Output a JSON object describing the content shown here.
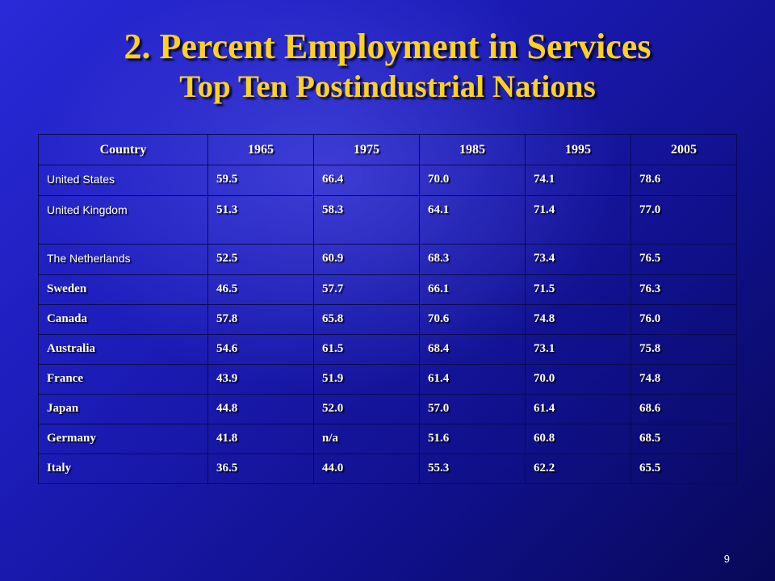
{
  "title": {
    "line1": "2. Percent Employment in Services",
    "line2": "Top Ten Postindustrial Nations"
  },
  "table": {
    "headers": [
      "Country",
      "1965",
      "1975",
      "1985",
      "1995",
      "2005"
    ],
    "rows": [
      {
        "country": "United States",
        "values": [
          "59.5",
          "66.4",
          "70.0",
          "74.1",
          "78.6"
        ]
      },
      {
        "country": "United Kingdom",
        "values": [
          "51.3",
          "58.3",
          "64.1",
          "71.4",
          "77.0"
        ]
      },
      {
        "country": "The Netherlands",
        "values": [
          "52.5",
          "60.9",
          "68.3",
          "73.4",
          "76.5"
        ]
      },
      {
        "country": "Sweden",
        "values": [
          "46.5",
          "57.7",
          "66.1",
          "71.5",
          "76.3"
        ]
      },
      {
        "country": "Canada",
        "values": [
          "57.8",
          "65.8",
          "70.6",
          "74.8",
          "76.0"
        ]
      },
      {
        "country": "Australia",
        "values": [
          "54.6",
          "61.5",
          "68.4",
          "73.1",
          "75.8"
        ]
      },
      {
        "country": "France",
        "values": [
          "43.9",
          "51.9",
          "61.4",
          "70.0",
          "74.8"
        ]
      },
      {
        "country": "Japan",
        "values": [
          "44.8",
          "52.0",
          "57.0",
          "61.4",
          "68.6"
        ]
      },
      {
        "country": "Germany",
        "values": [
          "41.8",
          "n/a",
          "51.6",
          "60.8",
          "68.5"
        ]
      },
      {
        "country": "Italy",
        "values": [
          "36.5",
          "44.0",
          "55.3",
          "62.2",
          "65.5"
        ]
      }
    ]
  },
  "slide_number": "9",
  "colors": {
    "title": "#ffd21f",
    "text": "#ffffff",
    "background": "#1c1cb8"
  }
}
